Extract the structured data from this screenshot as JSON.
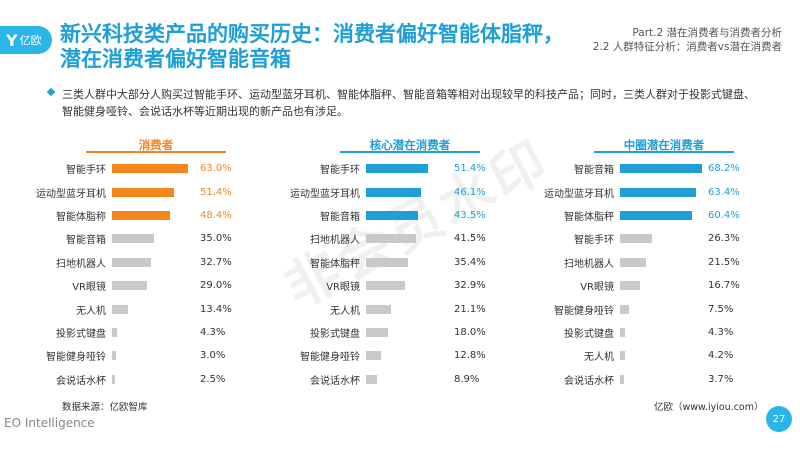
{
  "logo": {
    "mark": "Y",
    "text": "亿欧"
  },
  "title": "新兴科技类产品的购买历史：消费者偏好智能体脂秤，潜在消费者偏好智能音箱",
  "part": {
    "line1": "Part.2  潜在消费者与消费者分析",
    "line2": "2.2  人群特征分析：消费者vs潜在消费者"
  },
  "intro": "三类人群中大部分人购买过智能手环、运动型蓝牙耳机、智能体脂秤、智能音箱等相对出现较早的科技产品；同时，三类人群对于投影式键盘、智能健身哑铃、会说话水杯等近期出现的新产品也有涉足。",
  "watermark": "非会员水印",
  "source": "数据来源：亿欧智库",
  "site": "亿欧（www.iyiou.com）",
  "footer_brand": "EO Intelligence",
  "page_number": "27",
  "colors": {
    "orange": "#f5871f",
    "blue": "#1e9fd6",
    "gray": "#c9c9c9"
  },
  "chart_data": [
    {
      "type": "bar",
      "title": "消费者",
      "categories": [
        "智能手环",
        "运动型蓝牙耳机",
        "智能体脂称",
        "智能音箱",
        "扫地机器人",
        "VR眼镜",
        "无人机",
        "投影式键盘",
        "智能健身哑铃",
        "会说话水杯"
      ],
      "values": [
        63.0,
        51.4,
        48.4,
        35.0,
        32.7,
        29.0,
        13.4,
        4.3,
        3.0,
        2.5
      ],
      "labels": [
        "63.0%",
        "51.4%",
        "48.4%",
        "35.0%",
        "32.7%",
        "29.0%",
        "13.4%",
        "4.3%",
        "3.0%",
        "2.5%"
      ],
      "highlight_count": 3,
      "highlight_color": "#f5871f",
      "xlim": [
        0,
        70
      ]
    },
    {
      "type": "bar",
      "title": "核心潜在消费者",
      "categories": [
        "智能手环",
        "运动型蓝牙耳机",
        "智能音箱",
        "扫地机器人",
        "智能体脂秤",
        "VR眼镜",
        "无人机",
        "投影式键盘",
        "智能健身哑铃",
        "会说话水杯"
      ],
      "values": [
        51.4,
        46.1,
        43.5,
        41.5,
        35.4,
        32.9,
        21.1,
        18.0,
        12.8,
        8.9
      ],
      "labels": [
        "51.4%",
        "46.1%",
        "43.5%",
        "41.5%",
        "35.4%",
        "32.9%",
        "21.1%",
        "18.0%",
        "12.8%",
        "8.9%"
      ],
      "highlight_count": 3,
      "highlight_color": "#1e9fd6",
      "xlim": [
        0,
        70
      ]
    },
    {
      "type": "bar",
      "title": "中圈潜在消费者",
      "categories": [
        "智能音箱",
        "运动型蓝牙耳机",
        "智能体脂秤",
        "智能手环",
        "扫地机器人",
        "VR眼镜",
        "智能健身哑铃",
        "投影式键盘",
        "无人机",
        "会说话水杯"
      ],
      "values": [
        68.2,
        63.4,
        60.4,
        26.3,
        21.5,
        16.7,
        7.5,
        4.3,
        4.2,
        3.7
      ],
      "labels": [
        "68.2%",
        "63.4%",
        "60.4%",
        "26.3%",
        "21.5%",
        "16.7%",
        "7.5%",
        "4.3%",
        "4.2%",
        "3.7%"
      ],
      "highlight_count": 3,
      "highlight_color": "#1e9fd6",
      "xlim": [
        0,
        70
      ]
    }
  ]
}
